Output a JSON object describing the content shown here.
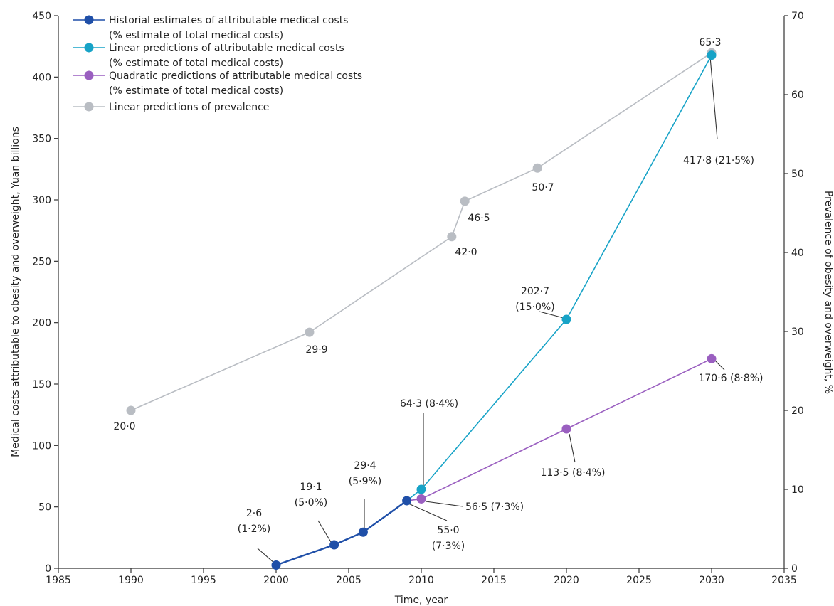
{
  "chart_data": {
    "type": "line",
    "title": "",
    "xlabel": "Time, year",
    "ylabel": "Medical costs attributable to obesity and overweight, Yuan billions",
    "y2label": "Prevalence of obesity and overweight, %",
    "xlim": [
      1985,
      2035
    ],
    "ylim": [
      0,
      450
    ],
    "y2lim": [
      0,
      70
    ],
    "xticks": [
      1985,
      1990,
      1995,
      2000,
      2005,
      2010,
      2015,
      2020,
      2025,
      2030,
      2035
    ],
    "yticks": [
      0,
      50,
      100,
      150,
      200,
      250,
      300,
      350,
      400,
      450
    ],
    "y2ticks": [
      0,
      10,
      20,
      30,
      40,
      50,
      60,
      70
    ],
    "grid": false,
    "legend_position": "top-left",
    "series": [
      {
        "name": "Historial estimates of attributable medical costs",
        "name_sub": "(% estimate of total medical costs)",
        "color": "#1f4fa8",
        "axis": "left",
        "points": [
          {
            "x": 2000,
            "y": 2.6,
            "label": [
              "2·6",
              "(1·2%)"
            ]
          },
          {
            "x": 2004,
            "y": 19.1,
            "label": [
              "19·1",
              "(5·0%)"
            ]
          },
          {
            "x": 2006,
            "y": 29.4,
            "label": [
              "29·4",
              "(5·9%)"
            ]
          },
          {
            "x": 2009,
            "y": 55.0,
            "label": [
              "55·0",
              "(7·3%)"
            ]
          }
        ]
      },
      {
        "name": "Linear predictions of attributable medical costs",
        "name_sub": "(% estimate of total medical costs)",
        "color": "#17a3c7",
        "axis": "left",
        "start_x": 2009,
        "start_y": 55.0,
        "points": [
          {
            "x": 2010,
            "y": 64.3,
            "label": [
              "64·3 (8·4%)"
            ]
          },
          {
            "x": 2020,
            "y": 202.7,
            "label": [
              "202·7",
              "(15·0%)"
            ]
          },
          {
            "x": 2030,
            "y": 417.8,
            "label": [
              "417·8 (21·5%)"
            ]
          }
        ]
      },
      {
        "name": "Quadratic predictions of attributable medical costs",
        "name_sub": "(% estimate of total medical costs)",
        "color": "#9a5fc0",
        "axis": "left",
        "start_x": 2009,
        "start_y": 55.0,
        "points": [
          {
            "x": 2010,
            "y": 56.5,
            "label": [
              "56·5 (7·3%)"
            ]
          },
          {
            "x": 2020,
            "y": 113.5,
            "label": [
              "113·5 (8·4%)"
            ]
          },
          {
            "x": 2030,
            "y": 170.6,
            "label": [
              "170·6 (8·8%)"
            ]
          }
        ]
      },
      {
        "name": "Linear predictions of prevalence",
        "name_sub": "",
        "color": "#b9bdc3",
        "axis": "right",
        "points": [
          {
            "x": 1990,
            "y": 20.0,
            "label": [
              "20·0"
            ]
          },
          {
            "x": 2002.3,
            "y": 29.9,
            "label": [
              "29·9"
            ]
          },
          {
            "x": 2012.1,
            "y": 42.0,
            "label": [
              "42·0"
            ]
          },
          {
            "x": 2013,
            "y": 46.5,
            "label": [
              "46·5"
            ]
          },
          {
            "x": 2018,
            "y": 50.7,
            "label": [
              "50·7"
            ]
          },
          {
            "x": 2030,
            "y": 65.3,
            "label": [
              "65·3"
            ]
          }
        ]
      }
    ]
  }
}
